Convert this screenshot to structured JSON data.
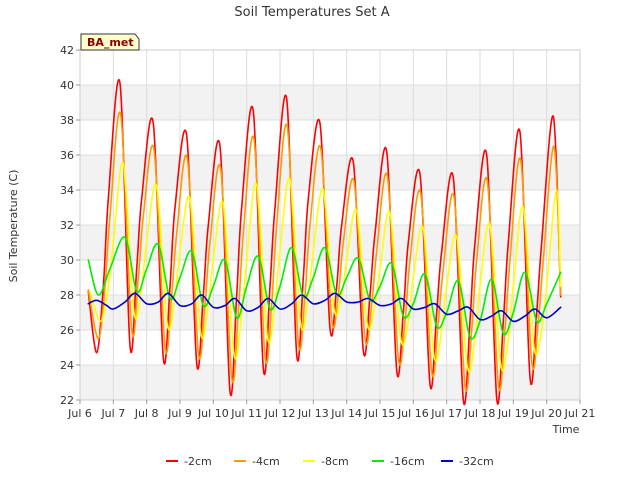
{
  "chart_data": {
    "type": "line",
    "title": "Soil Temperatures Set A",
    "site_label": "BA_met",
    "xlabel": "Time",
    "ylabel": "Soil Temperature (C)",
    "xlim": [
      6,
      21
    ],
    "ylim": [
      22,
      42
    ],
    "x_ticks": [
      6,
      7,
      8,
      9,
      10,
      11,
      12,
      13,
      14,
      15,
      16,
      17,
      18,
      19,
      20,
      21
    ],
    "x_tick_labels": [
      "Jul 6",
      "Jul 7",
      "Jul 8",
      "Jul 9",
      "Jul 10",
      "Jul 11",
      "Jul 12",
      "Jul 13",
      "Jul 14",
      "Jul 15",
      "Jul 16",
      "Jul 17",
      "Jul 18",
      "Jul 19",
      "Jul 20",
      "Jul 21"
    ],
    "y_ticks": [
      22,
      24,
      26,
      28,
      30,
      32,
      34,
      36,
      38,
      40,
      42
    ],
    "y_tick_labels": [
      "22",
      "24",
      "26",
      "28",
      "30",
      "32",
      "34",
      "36",
      "38",
      "40",
      "42"
    ],
    "grid": true,
    "background_bands": true,
    "legend_position": "bottom",
    "series": [
      {
        "name": "-2cm",
        "color": "#ff0000",
        "x": [
          6.25,
          6.5,
          6.7,
          6.85,
          7.2,
          7.5,
          7.7,
          7.85,
          8.2,
          8.5,
          8.7,
          8.85,
          9.2,
          9.5,
          9.7,
          9.85,
          10.2,
          10.5,
          10.7,
          10.85,
          11.2,
          11.5,
          11.7,
          11.85,
          12.2,
          12.5,
          12.7,
          12.85,
          13.2,
          13.5,
          13.7,
          13.85,
          14.2,
          14.5,
          14.7,
          14.85,
          15.2,
          15.5,
          15.7,
          15.85,
          16.2,
          16.5,
          16.7,
          16.85,
          17.2,
          17.5,
          17.7,
          17.85,
          18.2,
          18.5,
          18.7,
          18.85,
          19.2,
          19.5,
          19.7,
          19.85,
          20.2,
          20.42
        ],
        "y": [
          28.2,
          24.7,
          28.5,
          33.5,
          40.1,
          25.1,
          29.5,
          33.5,
          37.8,
          24.4,
          28.5,
          33.0,
          37.1,
          24.1,
          28.0,
          32.0,
          36.5,
          22.5,
          28.0,
          33.0,
          38.5,
          23.8,
          28.5,
          33.0,
          39.2,
          24.6,
          29.0,
          33.5,
          37.8,
          26.1,
          28.5,
          32.0,
          35.6,
          24.8,
          28.0,
          31.5,
          36.2,
          23.7,
          27.0,
          31.0,
          34.9,
          22.9,
          27.0,
          30.5,
          34.7,
          22.0,
          26.5,
          31.0,
          36.0,
          22.1,
          26.5,
          31.0,
          37.3,
          23.3,
          27.0,
          31.0,
          38.2,
          27.9
        ]
      },
      {
        "name": "-4cm",
        "color": "#ff9900",
        "x": [
          6.25,
          6.55,
          6.75,
          6.9,
          7.22,
          7.55,
          7.75,
          7.9,
          8.22,
          8.55,
          8.75,
          8.9,
          9.22,
          9.55,
          9.75,
          9.9,
          10.22,
          10.55,
          10.75,
          10.9,
          11.22,
          11.55,
          11.75,
          11.9,
          12.22,
          12.55,
          12.75,
          12.9,
          13.22,
          13.55,
          13.75,
          13.9,
          14.22,
          14.55,
          14.75,
          14.9,
          15.22,
          15.55,
          15.75,
          15.9,
          16.22,
          16.55,
          16.75,
          16.9,
          17.22,
          17.55,
          17.75,
          17.9,
          18.22,
          18.55,
          18.75,
          18.9,
          19.22,
          19.55,
          19.75,
          19.9,
          20.22,
          20.42
        ],
        "y": [
          28.3,
          25.5,
          28.5,
          32.5,
          38.3,
          26.0,
          29.0,
          32.5,
          36.3,
          25.0,
          28.0,
          31.5,
          35.8,
          24.7,
          27.5,
          31.0,
          35.2,
          23.3,
          27.0,
          31.5,
          36.9,
          24.5,
          27.5,
          32.0,
          37.6,
          25.3,
          28.0,
          32.0,
          36.4,
          26.6,
          28.0,
          31.0,
          34.5,
          25.5,
          27.5,
          30.5,
          34.8,
          24.4,
          26.5,
          30.0,
          33.8,
          23.6,
          26.5,
          29.5,
          33.6,
          22.8,
          26.0,
          30.0,
          34.5,
          22.9,
          26.0,
          30.0,
          35.7,
          24.2,
          26.5,
          30.0,
          36.5,
          28.0
        ]
      },
      {
        "name": "-8cm",
        "color": "#ffff00",
        "x": [
          6.3,
          6.62,
          6.85,
          7.0,
          7.3,
          7.62,
          7.85,
          8.0,
          8.3,
          8.62,
          8.85,
          9.0,
          9.3,
          9.62,
          9.85,
          10.0,
          10.3,
          10.62,
          10.85,
          11.0,
          11.3,
          11.62,
          11.85,
          12.0,
          12.3,
          12.62,
          12.85,
          13.0,
          13.3,
          13.62,
          13.85,
          14.0,
          14.3,
          14.62,
          14.85,
          15.0,
          15.3,
          15.62,
          15.85,
          16.0,
          16.3,
          16.62,
          16.85,
          17.0,
          17.3,
          17.62,
          17.85,
          18.0,
          18.3,
          18.62,
          18.85,
          19.0,
          19.3,
          19.62,
          19.85,
          20.0,
          20.3,
          20.42
        ],
        "y": [
          28.2,
          26.5,
          28.5,
          31.0,
          35.5,
          27.0,
          28.5,
          31.0,
          34.2,
          26.3,
          28.0,
          30.5,
          33.5,
          25.8,
          27.5,
          30.0,
          33.2,
          24.6,
          27.0,
          30.0,
          34.3,
          25.6,
          27.5,
          30.5,
          34.6,
          26.3,
          28.0,
          30.5,
          34.0,
          27.2,
          28.0,
          30.0,
          32.8,
          26.3,
          27.5,
          29.5,
          32.7,
          25.5,
          26.5,
          29.0,
          31.8,
          24.5,
          26.0,
          28.5,
          31.3,
          23.9,
          25.5,
          28.5,
          32.0,
          24.0,
          25.5,
          28.5,
          33.0,
          25.0,
          26.0,
          28.5,
          34.0,
          28.5
        ]
      },
      {
        "name": "-16cm",
        "color": "#00ee00",
        "x": [
          6.25,
          6.55,
          6.9,
          7.35,
          7.7,
          8.0,
          8.35,
          8.7,
          9.0,
          9.35,
          9.7,
          10.0,
          10.35,
          10.7,
          11.0,
          11.35,
          11.7,
          12.0,
          12.35,
          12.7,
          13.0,
          13.35,
          13.7,
          14.0,
          14.35,
          14.7,
          15.0,
          15.35,
          15.7,
          16.0,
          16.35,
          16.7,
          17.0,
          17.35,
          17.7,
          18.0,
          18.35,
          18.7,
          19.0,
          19.35,
          19.7,
          20.0,
          20.42
        ],
        "y": [
          30.0,
          28.0,
          29.5,
          31.3,
          28.2,
          29.5,
          30.9,
          27.8,
          29.0,
          30.5,
          27.4,
          28.5,
          30.0,
          26.7,
          28.5,
          30.2,
          27.2,
          28.5,
          30.7,
          27.9,
          29.0,
          30.7,
          28.0,
          29.0,
          30.1,
          27.7,
          28.5,
          29.8,
          26.8,
          27.5,
          29.2,
          26.2,
          27.0,
          28.8,
          25.6,
          26.5,
          28.9,
          25.8,
          27.0,
          29.3,
          26.5,
          27.5,
          29.3
        ]
      },
      {
        "name": "-32cm",
        "color": "#0000cc",
        "x": [
          6.25,
          6.5,
          6.8,
          7.0,
          7.35,
          7.65,
          8.0,
          8.35,
          8.65,
          9.0,
          9.35,
          9.65,
          10.0,
          10.35,
          10.65,
          11.0,
          11.35,
          11.65,
          12.0,
          12.35,
          12.65,
          13.0,
          13.35,
          13.65,
          14.0,
          14.35,
          14.65,
          15.0,
          15.35,
          15.65,
          16.0,
          16.35,
          16.65,
          17.0,
          17.35,
          17.65,
          18.0,
          18.35,
          18.65,
          19.0,
          19.35,
          19.65,
          20.0,
          20.42
        ],
        "y": [
          27.5,
          27.7,
          27.4,
          27.2,
          27.6,
          28.1,
          27.5,
          27.6,
          28.1,
          27.4,
          27.5,
          28.0,
          27.3,
          27.4,
          27.8,
          27.1,
          27.3,
          27.8,
          27.2,
          27.5,
          28.0,
          27.5,
          27.7,
          28.1,
          27.6,
          27.6,
          27.8,
          27.4,
          27.5,
          27.8,
          27.2,
          27.3,
          27.5,
          26.9,
          27.1,
          27.3,
          26.6,
          26.8,
          27.1,
          26.5,
          26.8,
          27.2,
          26.7,
          27.3
        ]
      }
    ]
  }
}
